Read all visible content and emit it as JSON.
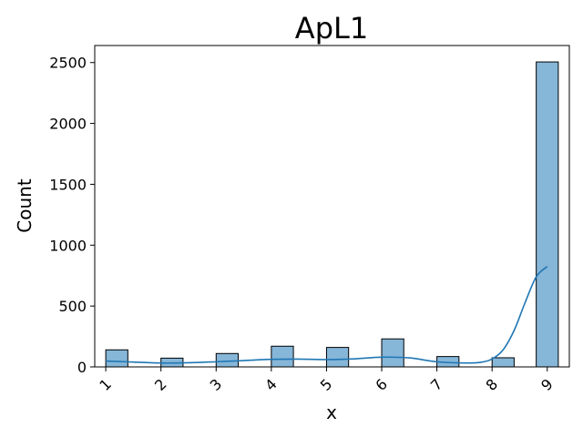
{
  "chart_data": {
    "type": "bar",
    "title": "ApL1",
    "xlabel": "x",
    "ylabel": "Count",
    "xticks": [
      "1",
      "2",
      "3",
      "4",
      "5",
      "6",
      "7",
      "8",
      "9"
    ],
    "yticks": [
      "0",
      "500",
      "1000",
      "1500",
      "2000",
      "2500"
    ],
    "xlim": [
      0.8,
      9.4
    ],
    "ylim": [
      0,
      2640
    ],
    "bin_width": 0.4,
    "bars": [
      {
        "x": 1.2,
        "value": 140
      },
      {
        "x": 2.2,
        "value": 72
      },
      {
        "x": 3.2,
        "value": 110
      },
      {
        "x": 4.2,
        "value": 170
      },
      {
        "x": 5.2,
        "value": 160
      },
      {
        "x": 6.2,
        "value": 230
      },
      {
        "x": 7.2,
        "value": 85
      },
      {
        "x": 8.2,
        "value": 75
      },
      {
        "x": 9.0,
        "value": 2505
      }
    ],
    "kde": {
      "x": [
        1.0,
        1.5,
        2.0,
        2.5,
        3.0,
        3.5,
        4.0,
        4.5,
        5.0,
        5.5,
        6.0,
        6.5,
        7.0,
        7.5,
        7.8,
        8.0,
        8.2,
        8.4,
        8.6,
        8.8,
        9.0
      ],
      "y": [
        48,
        40,
        32,
        34,
        42,
        52,
        62,
        64,
        60,
        66,
        80,
        74,
        42,
        32,
        38,
        65,
        140,
        300,
        530,
        740,
        825
      ]
    },
    "bar_color": "#86b6d8",
    "bar_edge_color": "#000000",
    "kde_color": "#1f77b4",
    "grid": false
  }
}
